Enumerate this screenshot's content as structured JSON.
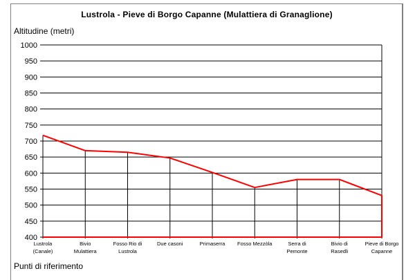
{
  "chart_data": {
    "type": "line",
    "title": "Lustrola - Pieve di Borgo Capanne (Mulattiera di Granaglione)",
    "xlabel": "Punti di riferimento",
    "ylabel": "Altitudine (metri)",
    "ylim": [
      400,
      1000
    ],
    "yticks": [
      400,
      450,
      500,
      550,
      600,
      650,
      700,
      750,
      800,
      850,
      900,
      950,
      1000
    ],
    "grid": true,
    "legend": "none",
    "categories": [
      [
        "Lustrola",
        "(Canale)"
      ],
      [
        "Bivio",
        "Mulattiera"
      ],
      [
        "Fosso Rio di",
        "Lustrola"
      ],
      [
        "Due casoni"
      ],
      [
        "Primaserra"
      ],
      [
        "Fosso Mezzòla"
      ],
      [
        "Serra di",
        "Pemonte"
      ],
      [
        "Bivio di",
        "Rasedli"
      ],
      [
        "Pieve di Borgo",
        "Capanne"
      ]
    ],
    "series": [
      {
        "name": "Altitudine",
        "color": "#ff0000",
        "values": [
          718,
          670,
          665,
          647,
          602,
          555,
          580,
          580,
          530
        ]
      }
    ]
  },
  "colors": {
    "line": "#ff0000",
    "grid": "#000000",
    "frame": "#808080"
  }
}
